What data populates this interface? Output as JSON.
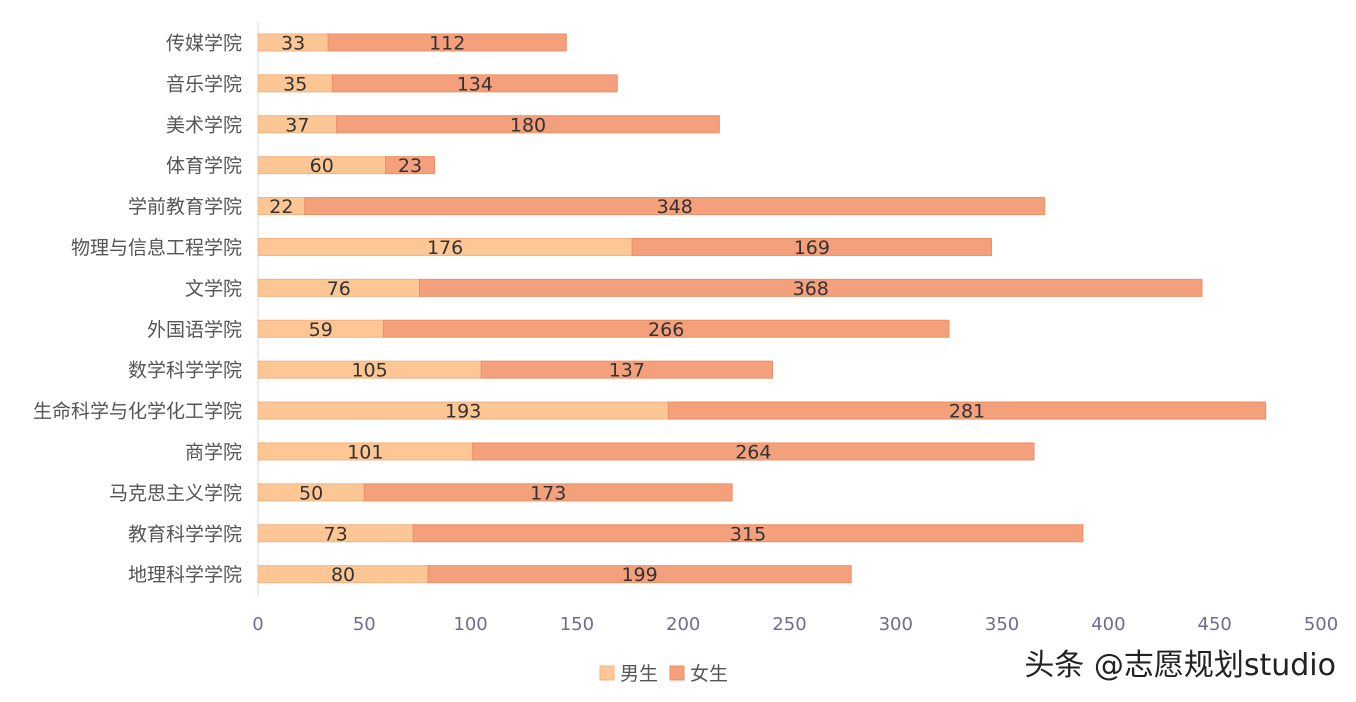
{
  "chart_data": {
    "type": "bar",
    "orientation": "horizontal",
    "stacked": true,
    "categories": [
      "传媒学院",
      "音乐学院",
      "美术学院",
      "体育学院",
      "学前教育学院",
      "物理与信息工程学院",
      "文学院",
      "外国语学院",
      "数学科学学院",
      "生命科学与化学化工学院",
      "商学院",
      "马克思主义学院",
      "教育科学学院",
      "地理科学学院"
    ],
    "series": [
      {
        "name": "男生",
        "color": "#fdc795",
        "border": "#f4b183",
        "values": [
          33,
          35,
          37,
          60,
          22,
          176,
          76,
          59,
          105,
          193,
          101,
          50,
          73,
          80
        ]
      },
      {
        "name": "女生",
        "color": "#f4a07c",
        "border": "#ee8f62",
        "values": [
          112,
          134,
          180,
          23,
          348,
          169,
          368,
          266,
          137,
          281,
          264,
          173,
          315,
          199
        ]
      }
    ],
    "xlim": [
      0,
      500
    ],
    "xticks": [
      0,
      50,
      100,
      150,
      200,
      250,
      300,
      350,
      400,
      450,
      500
    ],
    "grid": false,
    "legend": "bottom-center"
  },
  "watermark": "头条 @志愿规划studio"
}
